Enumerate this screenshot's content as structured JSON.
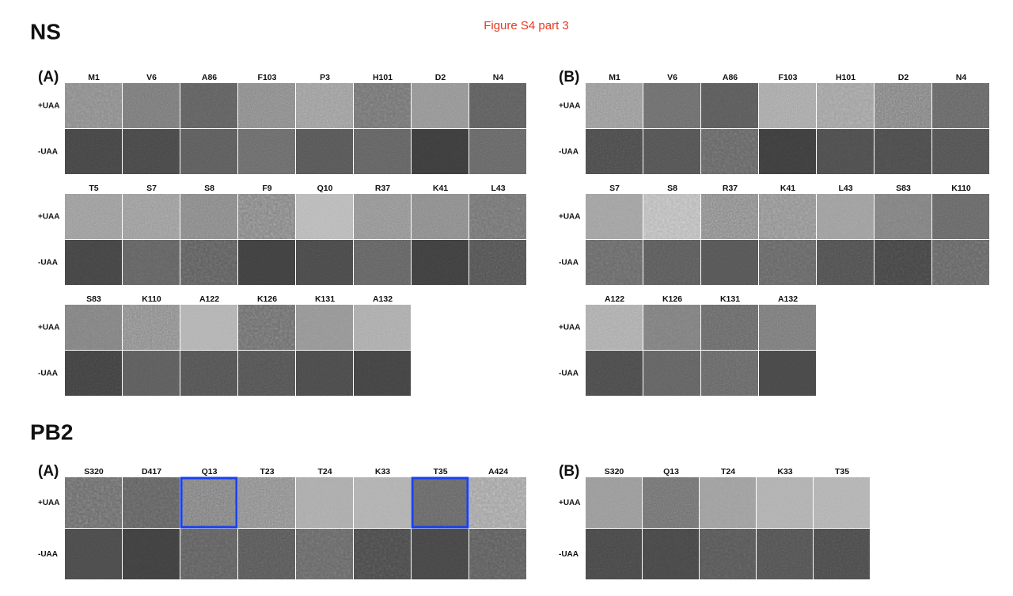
{
  "header": {
    "title": "Figure S4 part 3"
  },
  "sections": [
    {
      "title": "NS",
      "panels": [
        {
          "label": "(A)",
          "blocks": [
            {
              "columns": [
                "M1",
                "V6",
                "A86",
                "F103",
                "P3",
                "H101",
                "D2",
                "N4"
              ],
              "rows": [
                "+UAA",
                "-UAA"
              ]
            },
            {
              "columns": [
                "T5",
                "S7",
                "S8",
                "F9",
                "Q10",
                "R37",
                "K41",
                "L43"
              ],
              "rows": [
                "+UAA",
                "-UAA"
              ]
            },
            {
              "columns": [
                "S83",
                "K110",
                "A122",
                "K126",
                "K131",
                "A132"
              ],
              "rows": [
                "+UAA",
                "-UAA"
              ]
            }
          ]
        },
        {
          "label": "(B)",
          "blocks": [
            {
              "columns": [
                "M1",
                "V6",
                "A86",
                "F103",
                "H101",
                "D2",
                "N4"
              ],
              "rows": [
                "+UAA",
                "-UAA"
              ]
            },
            {
              "columns": [
                "S7",
                "S8",
                "R37",
                "K41",
                "L43",
                "S83",
                "K110"
              ],
              "rows": [
                "+UAA",
                "-UAA"
              ]
            },
            {
              "columns": [
                "A122",
                "K126",
                "K131",
                "A132"
              ],
              "rows": [
                "+UAA",
                "-UAA"
              ]
            }
          ]
        }
      ]
    },
    {
      "title": "PB2",
      "panels": [
        {
          "label": "(A)",
          "blocks": [
            {
              "columns": [
                "S320",
                "D417",
                "Q13",
                "T23",
                "T24",
                "K33",
                "T35",
                "A424"
              ],
              "rows": [
                "+UAA",
                "-UAA"
              ]
            }
          ]
        },
        {
          "label": "(B)",
          "blocks": [
            {
              "columns": [
                "S320",
                "Q13",
                "T24",
                "K33",
                "T35"
              ],
              "rows": [
                "+UAA",
                "-UAA"
              ]
            }
          ]
        }
      ]
    }
  ]
}
